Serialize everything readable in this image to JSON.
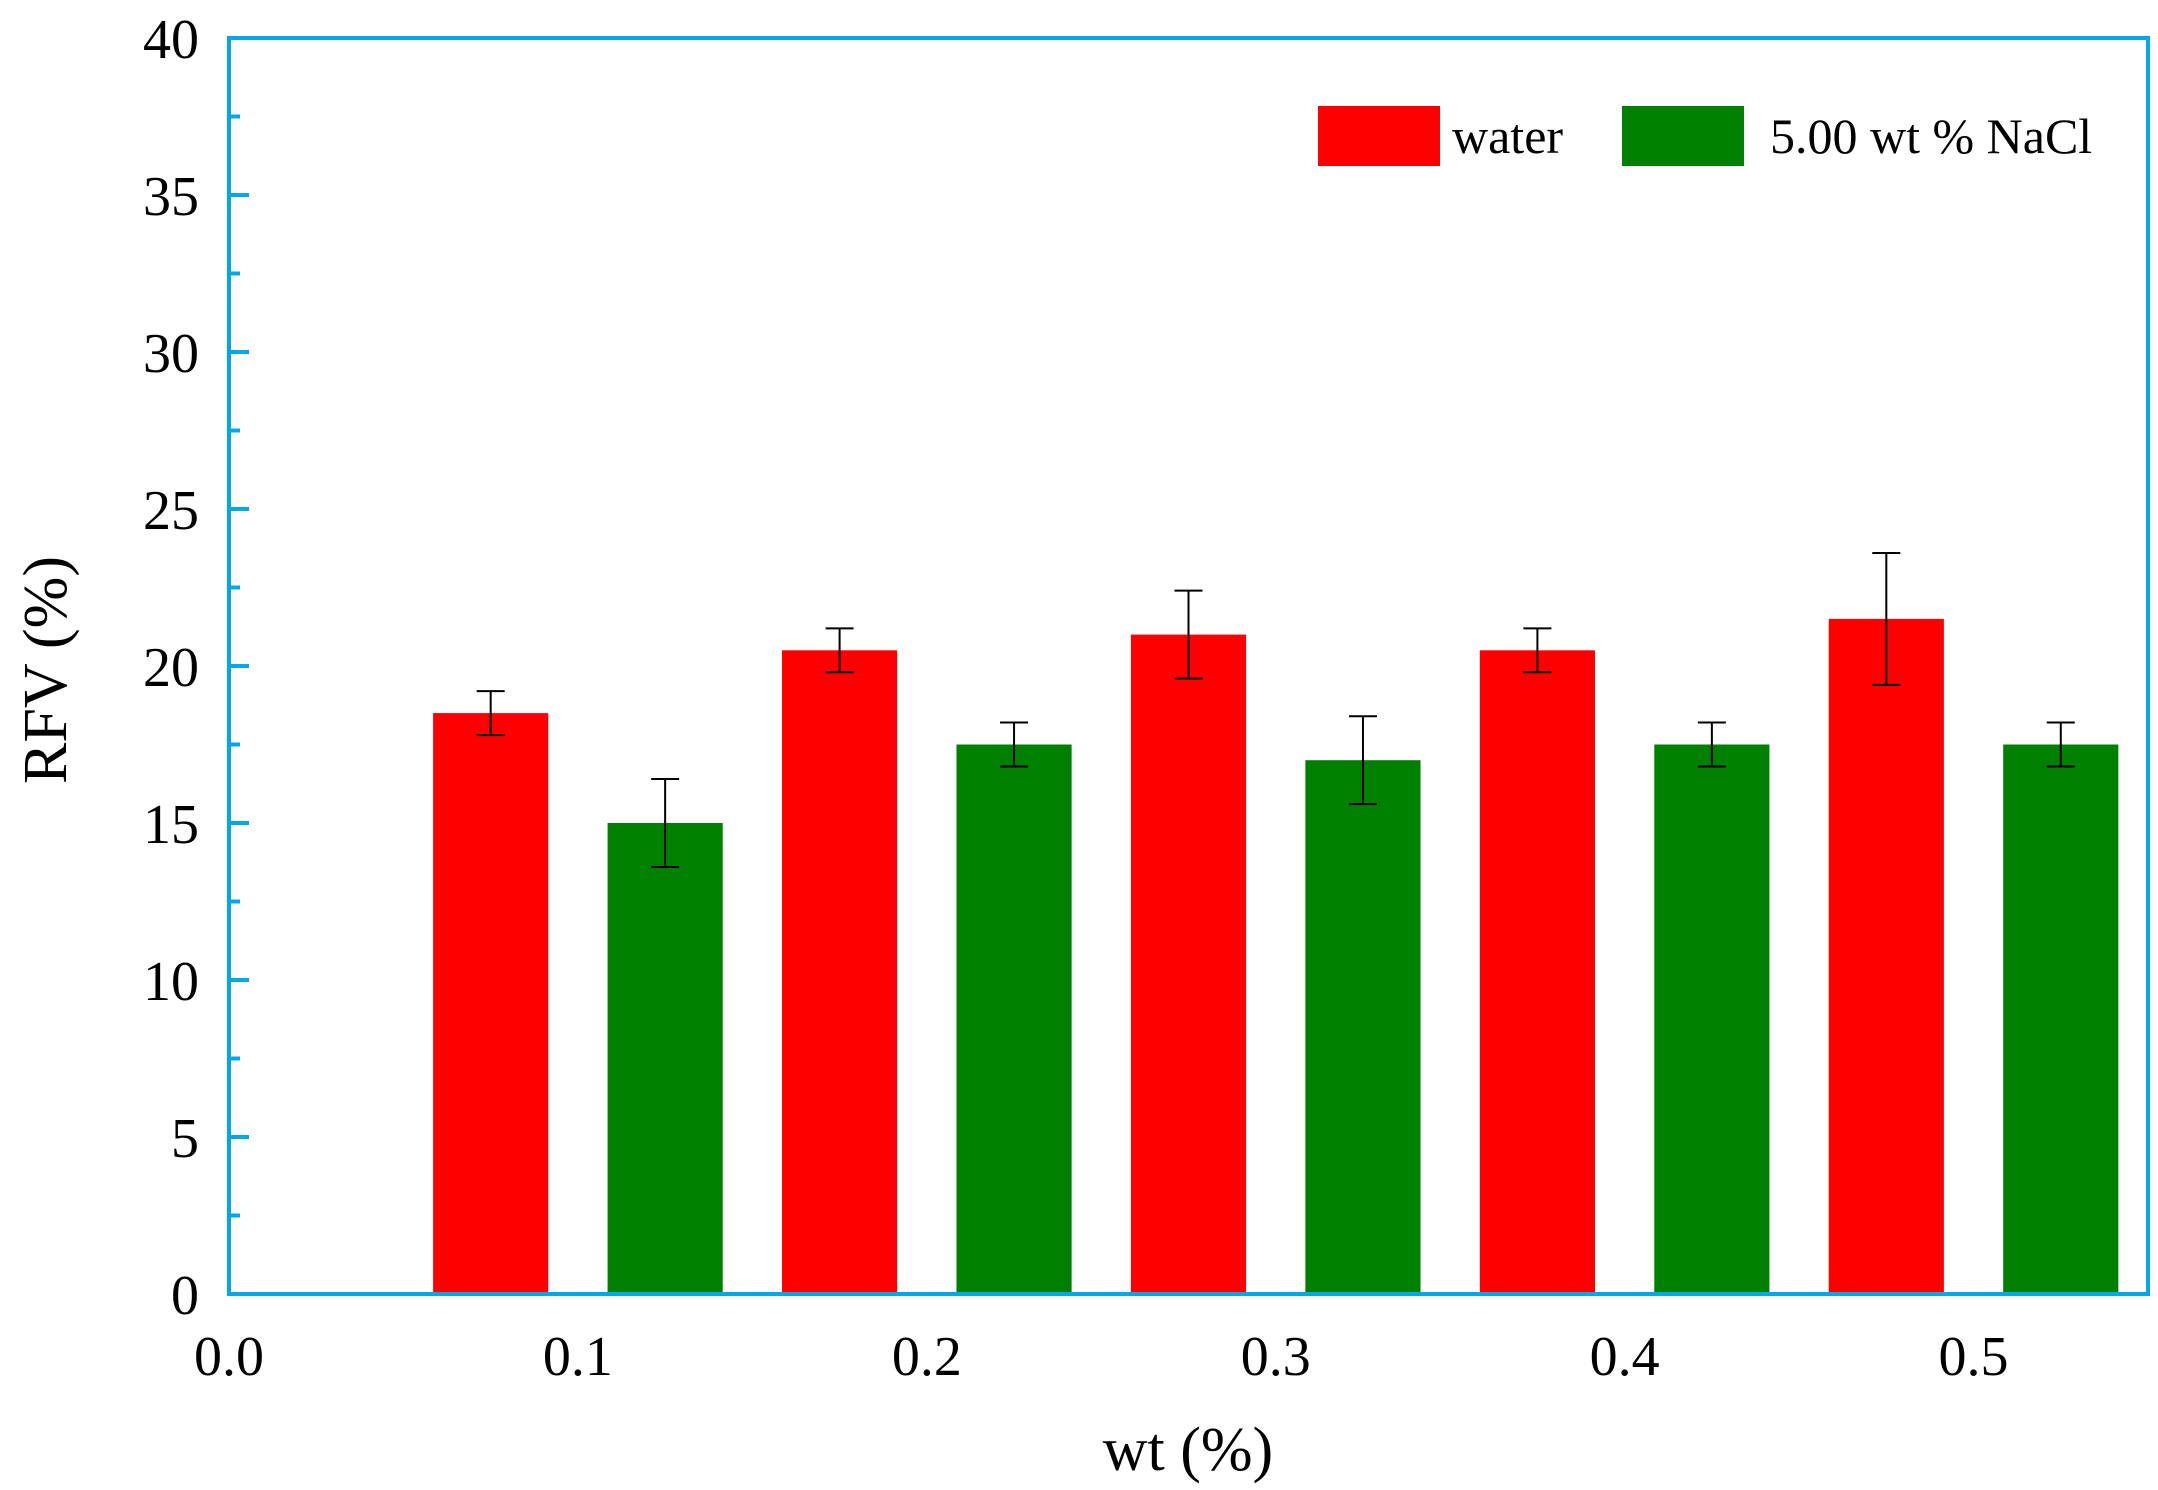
{
  "chart_data": {
    "type": "bar",
    "title": "",
    "xlabel": "wt (%)",
    "ylabel": "RFV (%)",
    "xlim": [
      0.0,
      0.55
    ],
    "ylim": [
      0,
      40
    ],
    "x_ticks": [
      0.0,
      0.1,
      0.2,
      0.3,
      0.4,
      0.5
    ],
    "x_tick_labels": [
      "0.0",
      "0.1",
      "0.2",
      "0.3",
      "0.4",
      "0.5"
    ],
    "y_ticks": [
      0,
      5,
      10,
      15,
      20,
      25,
      30,
      35,
      40
    ],
    "y_tick_labels": [
      "0",
      "5",
      "10",
      "15",
      "20",
      "25",
      "30",
      "35",
      "40"
    ],
    "y_minor_step": 2.5,
    "bar_width": 0.033,
    "grid": false,
    "legend_position": "top-right",
    "series": [
      {
        "name": "water",
        "color": "#ff0000",
        "x": [
          0.075,
          0.175,
          0.275,
          0.375,
          0.475
        ],
        "values": [
          18.5,
          20.5,
          21.0,
          20.5,
          21.5
        ],
        "errors": [
          0.7,
          0.7,
          1.4,
          0.7,
          2.1
        ]
      },
      {
        "name": "5.00 wt % NaCl",
        "color": "#008000",
        "x": [
          0.125,
          0.225,
          0.325,
          0.425,
          0.525
        ],
        "values": [
          15.0,
          17.5,
          17.0,
          17.5,
          17.5
        ],
        "errors": [
          1.4,
          0.7,
          1.4,
          0.7,
          0.7
        ]
      }
    ],
    "axis_color": "#00a8e8"
  }
}
